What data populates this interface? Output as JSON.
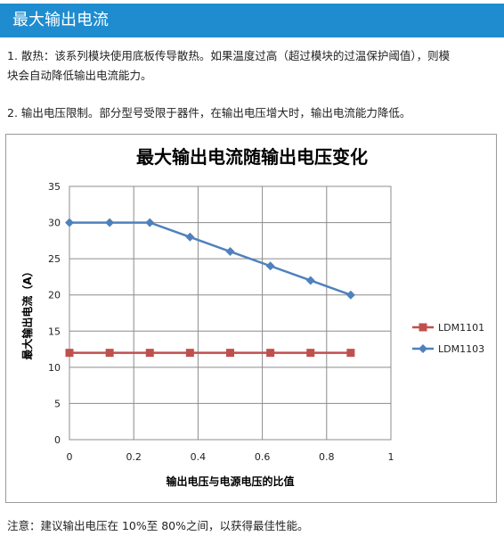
{
  "header": {
    "title": "最大输出电流"
  },
  "paragraphs": {
    "p1_line1": "1. 散热：该系列模块使用底板传导散热。如果温度过高（超过模块的过温保护阈值），则模",
    "p1_line2": "块会自动降低输出电流能力。",
    "p2": "2. 输出电压限制。部分型号受限于器件，在输出电压增大时，输出电流能力降低。"
  },
  "note": "注意：建议输出电压在 10%至 80%之间，以获得最佳性能。",
  "chart_data": {
    "type": "line",
    "title": "最大输出电流随输出电压变化",
    "xlabel": "输出电压与电源电压的比值",
    "ylabel": "最大输出电流（A）",
    "xlim": [
      0,
      1
    ],
    "ylim": [
      0,
      35
    ],
    "x_ticks": [
      "0",
      "0.2",
      "0.4",
      "0.6",
      "0.8",
      "1"
    ],
    "y_ticks": [
      "0",
      "5",
      "10",
      "15",
      "20",
      "25",
      "30",
      "35"
    ],
    "grid": true,
    "legend_position": "right",
    "x": [
      0,
      0.125,
      0.25,
      0.375,
      0.5,
      0.625,
      0.75,
      0.875
    ],
    "series": [
      {
        "name": "LDM1101",
        "values": [
          12,
          12,
          12,
          12,
          12,
          12,
          12,
          12
        ],
        "color": "#c0504d",
        "marker": "square"
      },
      {
        "name": "LDM1103",
        "values": [
          30,
          30,
          30,
          28,
          26,
          24,
          22,
          20
        ],
        "color": "#4f81bd",
        "marker": "diamond"
      }
    ]
  }
}
